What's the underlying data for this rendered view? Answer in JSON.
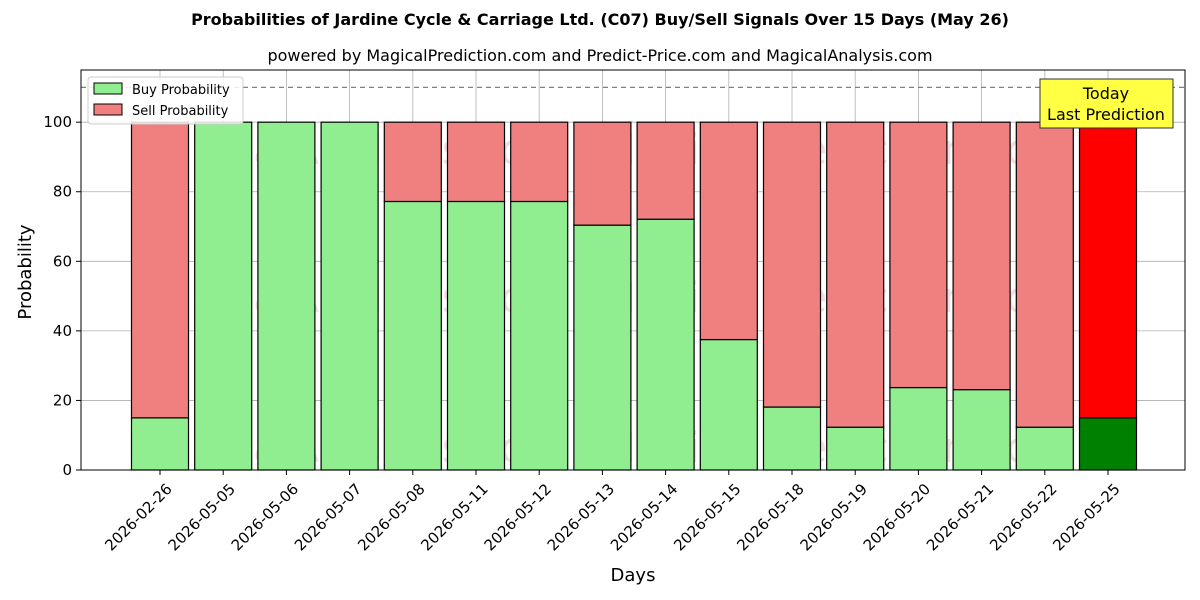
{
  "chart_data": {
    "type": "bar",
    "stacked": true,
    "title": "Probabilities of Jardine Cycle & Carriage Ltd. (C07) Buy/Sell Signals Over 15 Days (May 26)",
    "subtitle": "powered by MagicalPrediction.com and Predict-Price.com and MagicalAnalysis.com",
    "xlabel": "Days",
    "ylabel": "Probability",
    "ylim": [
      0,
      115
    ],
    "yticks": [
      0,
      20,
      40,
      60,
      80,
      100
    ],
    "grid": true,
    "legend_position": "top-left",
    "reference_line": 110,
    "categories": [
      "2026-02-26",
      "2026-05-05",
      "2026-05-06",
      "2026-05-07",
      "2026-05-08",
      "2026-05-11",
      "2026-05-12",
      "2026-05-13",
      "2026-05-14",
      "2026-05-15",
      "2026-05-18",
      "2026-05-19",
      "2026-05-20",
      "2026-05-21",
      "2026-05-22",
      "2026-05-25"
    ],
    "series": [
      {
        "name": "Buy Probability",
        "color": "#90ee90",
        "values": [
          15,
          100,
          100,
          100,
          77.2,
          77.2,
          77.2,
          70.4,
          72.1,
          37.5,
          18.1,
          12.3,
          23.7,
          23.1,
          12.3,
          15
        ]
      },
      {
        "name": "Sell Probability",
        "color": "#f08080",
        "values": [
          85,
          0,
          0,
          0,
          22.8,
          22.8,
          22.8,
          29.6,
          27.9,
          62.5,
          81.9,
          87.7,
          76.3,
          76.9,
          87.7,
          85
        ]
      }
    ],
    "highlight": {
      "index": 15,
      "buy_color": "#008000",
      "sell_color": "#ff0000"
    },
    "annotation": {
      "line1": "Today",
      "line2": "Last Prediction",
      "color": "#ffff44"
    },
    "watermarks": [
      "MagicalAnalysis.com",
      "MagicalPrediction.com"
    ]
  }
}
